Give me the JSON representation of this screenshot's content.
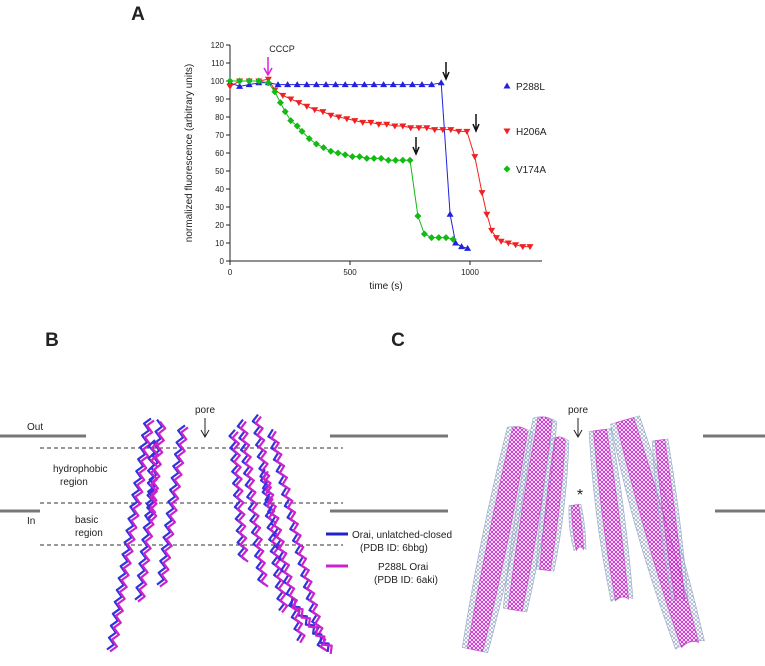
{
  "panel_labels": [
    "A",
    "B",
    "C"
  ],
  "chart_data": {
    "type": "line",
    "xlabel": "time (s)",
    "ylabel": "normalized fluorescence (arbitrary units)",
    "xlim": [
      0,
      1300
    ],
    "xticks": [
      0,
      500,
      1000
    ],
    "ylim": [
      0,
      120
    ],
    "yticks": [
      0,
      10,
      20,
      30,
      40,
      50,
      60,
      70,
      80,
      90,
      100,
      110,
      120
    ],
    "annotation": "CCCP",
    "legend": "right",
    "series": [
      {
        "name": "P288L",
        "color": "#2222dd",
        "marker": "triangle-up",
        "x": [
          0,
          40,
          80,
          120,
          160,
          200,
          240,
          280,
          320,
          360,
          400,
          440,
          480,
          520,
          560,
          600,
          640,
          680,
          720,
          760,
          800,
          840,
          880,
          917,
          940,
          965,
          990
        ],
        "values": [
          99,
          97,
          98,
          99,
          99,
          98,
          98,
          98,
          98,
          98,
          98,
          98,
          98,
          98,
          98,
          98,
          98,
          98,
          98,
          98,
          98,
          98,
          99,
          26,
          10,
          8,
          7
        ]
      },
      {
        "name": "H206A",
        "color": "#ee2222",
        "marker": "triangle-down",
        "x": [
          0,
          40,
          80,
          120,
          160,
          187,
          220,
          253,
          287,
          320,
          353,
          387,
          420,
          453,
          487,
          520,
          553,
          587,
          620,
          653,
          687,
          720,
          753,
          787,
          820,
          853,
          887,
          920,
          953,
          987,
          1020,
          1050,
          1070,
          1090,
          1110,
          1130,
          1160,
          1190,
          1220,
          1250
        ],
        "values": [
          97,
          100,
          100,
          100,
          101,
          95,
          92,
          90,
          88,
          86,
          84,
          83,
          81,
          80,
          79,
          78,
          77,
          77,
          76,
          76,
          75,
          75,
          74,
          74,
          74,
          73,
          73,
          73,
          72,
          72,
          58,
          38,
          26,
          17,
          13,
          11,
          10,
          9,
          8,
          8
        ]
      },
      {
        "name": "V174A",
        "color": "#11bb11",
        "marker": "diamond",
        "x": [
          0,
          40,
          80,
          120,
          160,
          187,
          210,
          230,
          253,
          280,
          300,
          330,
          360,
          390,
          420,
          450,
          480,
          510,
          540,
          570,
          600,
          630,
          660,
          690,
          720,
          750,
          783,
          810,
          840,
          870,
          900,
          930
        ],
        "values": [
          100,
          100,
          100,
          100,
          99,
          94,
          88,
          83,
          78,
          75,
          72,
          68,
          65,
          63,
          61,
          60,
          59,
          58,
          58,
          57,
          57,
          57,
          56,
          56,
          56,
          56,
          25,
          15,
          13,
          13,
          13,
          12
        ]
      }
    ]
  },
  "panel_b": {
    "pore": "pore",
    "out": "Out",
    "in": "In",
    "hydrophobic": [
      "hydrophobic",
      "region"
    ],
    "basic": [
      "basic",
      "region"
    ],
    "legend": [
      {
        "name": "Orai, unlatched-closed",
        "id": "(PDB ID: 6bbg)"
      },
      {
        "name": "P288L Orai",
        "id": "(PDB ID: 6aki)"
      }
    ]
  },
  "panel_c": {
    "pore": "pore",
    "star": "*"
  }
}
